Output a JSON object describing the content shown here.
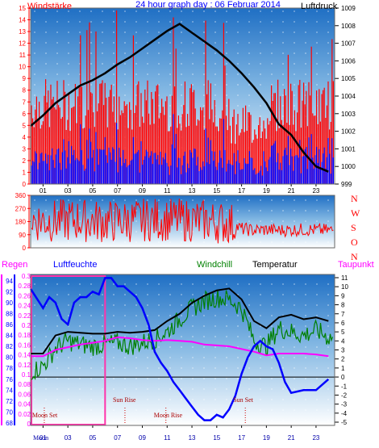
{
  "chart_data": [
    {
      "type": "line",
      "title": "24 hour graph day : 06 Februar 2014",
      "ylabel_left": "Windstärke",
      "ylabel_right": "Luftdruck",
      "x_ticks": [
        "01",
        "03",
        "05",
        "07",
        "09",
        "11",
        "13",
        "15",
        "17",
        "19",
        "21",
        "23"
      ],
      "y_left_ticks": [
        "0",
        "1",
        "2",
        "3",
        "4",
        "5",
        "6",
        "7",
        "8",
        "9",
        "10",
        "11",
        "12",
        "13",
        "14",
        "15"
      ],
      "y_right_ticks": [
        "999",
        "1000",
        "1001",
        "1002",
        "1003",
        "1004",
        "1005",
        "1006",
        "1007",
        "1008",
        "1009"
      ],
      "x_range_hours": [
        0,
        24.5
      ],
      "ylim_left": [
        0,
        15
      ],
      "ylim_right": [
        999,
        1009
      ],
      "pressure": {
        "x": [
          0,
          1,
          2,
          3,
          4,
          5,
          6,
          7,
          8,
          9,
          10,
          11,
          12,
          13,
          14,
          15,
          16,
          17,
          18,
          19,
          20,
          21,
          22,
          23,
          24
        ],
        "values": [
          1002.3,
          1002.9,
          1003.6,
          1004.1,
          1004.6,
          1004.9,
          1005.3,
          1005.8,
          1006.2,
          1006.7,
          1007.2,
          1007.7,
          1008.1,
          1007.6,
          1007.1,
          1006.6,
          1006.0,
          1005.3,
          1004.5,
          1003.6,
          1002.4,
          1001.8,
          1000.8,
          1000.0,
          999.7
        ]
      },
      "colors": {
        "gust": "#ff0000",
        "wind": "#0000ff",
        "pressure": "#000000",
        "title": "#0000ff",
        "left_axis": "#ff0000",
        "bg_top": "#1f6fc4",
        "bg_bottom": "#ffffff"
      }
    },
    {
      "type": "line",
      "y_left_ticks": [
        "0",
        "90",
        "180",
        "270",
        "360"
      ],
      "directions": [
        "N",
        "W",
        "S",
        "O",
        "N"
      ],
      "ylim": [
        0,
        360
      ],
      "mean_direction_by_hour": {
        "x": [
          0,
          2,
          4,
          6,
          8,
          10,
          12,
          14,
          16,
          17,
          18,
          19,
          20,
          22,
          24
        ],
        "values": [
          190,
          185,
          190,
          180,
          185,
          195,
          190,
          185,
          170,
          130,
          120,
          125,
          120,
          125,
          120
        ]
      },
      "colors": {
        "line": "#ff0000"
      }
    },
    {
      "type": "line",
      "labels": {
        "regen": "Regen",
        "humidity": "Luftfeuchte",
        "windchill": "Windchill",
        "temperature": "Temperatur",
        "dewpoint": "Taupunkt"
      },
      "rain_ticks": [
        "0",
        "0.02",
        "0.04",
        "0.06",
        "0.08",
        "0.1",
        "0.12",
        "0.14",
        "0.16",
        "0.18",
        "0.2",
        "0.22",
        "0.24",
        "0.26",
        "0.28",
        "0.3"
      ],
      "humidity_ticks": [
        "68",
        "70",
        "72",
        "74",
        "76",
        "78",
        "80",
        "82",
        "84",
        "86",
        "88",
        "90",
        "92",
        "94"
      ],
      "temperature_ticks": [
        "-5",
        "-4",
        "-3",
        "-2",
        "-1",
        "0",
        "1",
        "2",
        "3",
        "4",
        "5",
        "6",
        "7",
        "8",
        "9",
        "10",
        "11"
      ],
      "ylim_humidity": [
        68,
        95
      ],
      "ylim_temperature": [
        -5,
        11
      ],
      "annotations": {
        "moon_set": "Moon Set",
        "sun_rise": "Sun Rise",
        "moon_rise": "Moon Rise",
        "sun_set": "Sun Set",
        "moon_axis": "Moon"
      },
      "event_hours": {
        "moon_set": 1.1,
        "sun_rise": 7.6,
        "moon_rise": 10.9,
        "sun_set": 17.3
      },
      "rain_highlight_hours": [
        0,
        6
      ],
      "temperature": {
        "x": [
          0,
          1,
          2,
          3,
          4,
          5,
          6,
          7,
          8,
          9,
          10,
          11,
          12,
          13,
          14,
          15,
          16,
          17,
          18,
          19,
          20,
          21,
          22,
          23,
          24
        ],
        "values": [
          2.6,
          2.6,
          4.6,
          5.0,
          4.9,
          4.8,
          4.8,
          5.0,
          4.9,
          5.0,
          5.2,
          6.2,
          7.0,
          8.2,
          9.0,
          9.6,
          9.8,
          8.6,
          6.2,
          5.4,
          6.6,
          6.9,
          6.4,
          6.6,
          6.2
        ]
      },
      "windchill": {
        "x": [
          0,
          1,
          2,
          3,
          4,
          5,
          6,
          7,
          8,
          9,
          10,
          11,
          12,
          13,
          14,
          15,
          16,
          17,
          18,
          19,
          20,
          21,
          22,
          23,
          24
        ],
        "values": [
          0.6,
          1.2,
          3.2,
          4.0,
          3.6,
          3.4,
          3.6,
          3.8,
          3.4,
          3.8,
          4.2,
          5.0,
          6.4,
          7.6,
          8.4,
          8.8,
          8.6,
          7.6,
          4.0,
          3.4,
          5.4,
          5.0,
          4.6,
          5.2,
          4.4
        ]
      },
      "dewpoint": {
        "x": [
          0,
          1,
          2,
          3,
          4,
          5,
          6,
          7,
          8,
          9,
          10,
          11,
          12,
          13,
          14,
          15,
          16,
          17,
          18,
          19,
          20,
          21,
          22,
          23,
          24
        ],
        "values": [
          2.3,
          2.3,
          3.0,
          3.3,
          3.6,
          3.8,
          4.0,
          4.4,
          4.3,
          4.1,
          4.0,
          4.1,
          4.0,
          3.9,
          3.6,
          3.5,
          3.4,
          3.1,
          2.8,
          2.4,
          2.6,
          2.6,
          2.6,
          2.5,
          2.3
        ]
      },
      "humidity": {
        "x": [
          0,
          1,
          1.5,
          2,
          2.5,
          3,
          3.5,
          4,
          4.5,
          5,
          5.5,
          6,
          6.5,
          7,
          7.5,
          8,
          8.5,
          9,
          9.5,
          10,
          10.5,
          11,
          11.5,
          12,
          12.5,
          13,
          13.5,
          14,
          14.5,
          15,
          15.5,
          16,
          16.5,
          17,
          17.5,
          18,
          18.5,
          19,
          19.5,
          20,
          20.5,
          21,
          22,
          23,
          24
        ],
        "values": [
          92.5,
          89,
          91,
          90,
          87,
          86,
          90,
          91,
          91,
          92,
          91.5,
          94.5,
          94.5,
          93,
          93,
          92,
          91,
          89,
          86,
          81,
          79,
          77.5,
          75.5,
          74,
          72.5,
          71,
          69.5,
          68.5,
          68.5,
          69.5,
          69,
          70.5,
          73,
          77,
          80,
          82,
          83,
          82,
          81.5,
          79,
          75.5,
          73.5,
          74,
          74,
          76
        ]
      },
      "colors": {
        "regen": "#ff00ff",
        "humidity": "#0000ff",
        "windchill": "#008000",
        "temperature": "#000000",
        "dewpoint": "#ff00ff",
        "zero_line": "#000000",
        "rain_highlight": "#ff33aa"
      }
    }
  ]
}
